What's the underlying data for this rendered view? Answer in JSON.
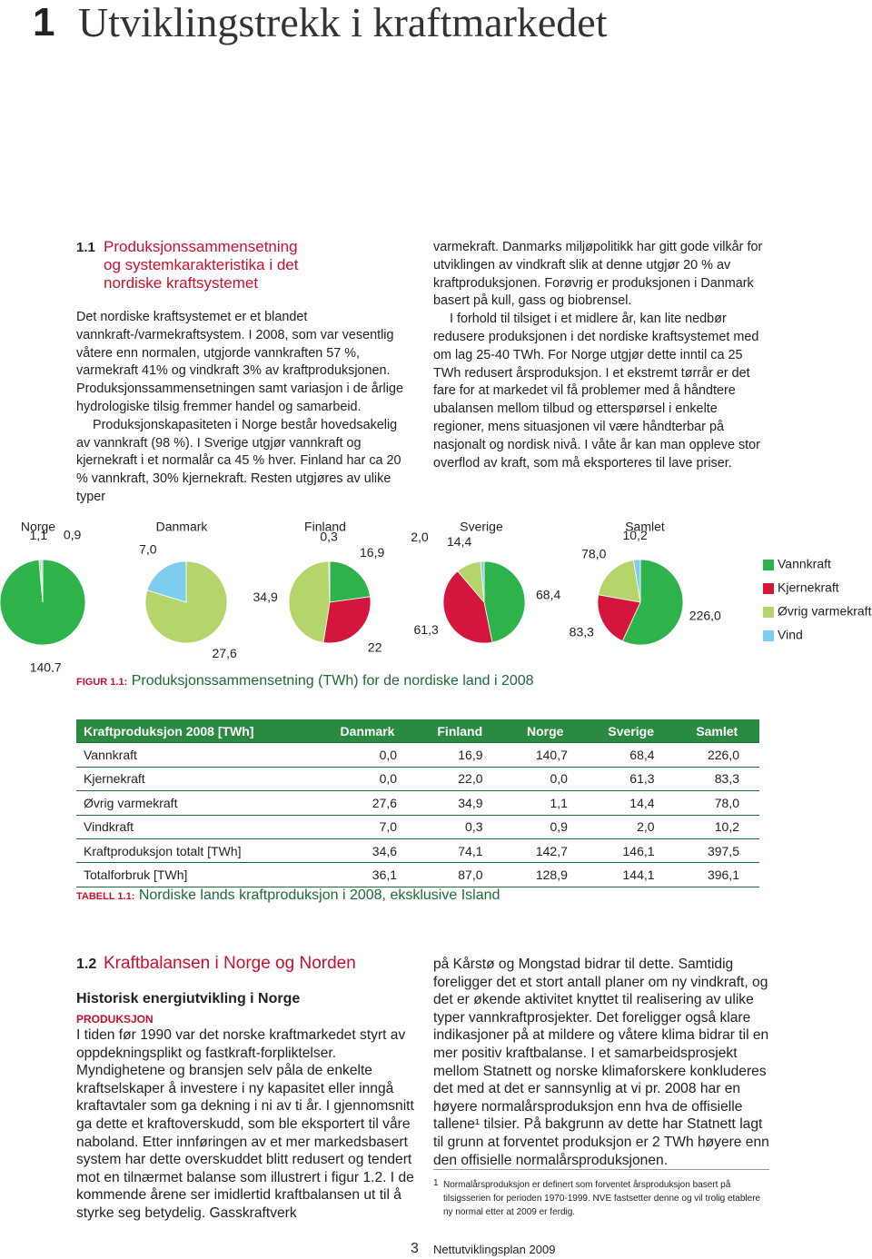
{
  "header": {
    "chapter_number": "1",
    "chapter_title": "Utviklingstrekk i kraftmarkedet"
  },
  "section_1": {
    "number": "1.1",
    "title_lines": [
      "Produksjonssammensetning",
      "og systemkarakteristika i det",
      "nordiske kraftsystemet"
    ],
    "left_paragraphs": [
      "Det nordiske kraftsystemet er et blandet vannkraft-/varmekraftsystem. I 2008, som var vesentlig våtere enn normalen, utgjorde vannkraften 57 %, varmekraft 41% og vindkraft 3% av kraftproduksjonen. Produksjonssammensetningen samt variasjon i de årlige hydrologiske tilsig fremmer handel og samarbeid.",
      "Produksjonskapasiteten i Norge består hovedsakelig av vannkraft (98 %). I Sverige utgjør vannkraft og kjernekraft i et normalår ca 45 % hver. Finland har ca 20 % vannkraft, 30% kjernekraft. Resten utgjøres av ulike typer"
    ],
    "right_paragraphs": [
      "varmekraft. Danmarks miljøpolitikk har gitt gode vilkår for utviklingen av vindkraft slik at denne utgjør 20 % av kraftproduksjonen. Forøvrig er produksjonen i Danmark basert på kull, gass og biobrensel.",
      "I forhold til tilsiget i et midlere år, kan lite nedbør redusere produksjonen i det nordiske kraftsystemet med om lag 25-40 TWh. For Norge utgjør dette inntil ca 25 TWh redusert årsproduksjon. I et ekstremt tørrår er det fare for at markedet vil få problemer med å håndtere ubalansen mellom tilbud og etterspørsel i enkelte regioner, mens situasjonen vil være håndterbar på nasjonalt og nordisk nivå. I våte år kan man oppleve stor overflod av kraft, som må eksporteres til lave priser."
    ]
  },
  "chart_data": [
    {
      "type": "pie",
      "title": "Norge",
      "values": [
        140.7,
        1.1,
        0.9
      ],
      "value_labels": [
        "140,7",
        "1,1",
        "0,9"
      ],
      "colors": [
        "#2db34a",
        "#b5d56a",
        "#7fcdee"
      ]
    },
    {
      "type": "pie",
      "title": "Danmark",
      "values": [
        27.6,
        7.0
      ],
      "value_labels": [
        "27,6",
        "7,0"
      ],
      "colors": [
        "#b5d56a",
        "#7fcdee"
      ]
    },
    {
      "type": "pie",
      "title": "Finland",
      "values": [
        16.9,
        22,
        34.9,
        0.3
      ],
      "value_labels": [
        "16,9",
        "22",
        "34,9",
        "0,3"
      ],
      "colors": [
        "#2db34a",
        "#d4163c",
        "#b5d56a",
        "#7fcdee"
      ]
    },
    {
      "type": "pie",
      "title": "Sverige",
      "values": [
        68.4,
        61.3,
        14.4,
        2.0
      ],
      "value_labels": [
        "68,4",
        "61,3",
        "14,4",
        "2,0"
      ],
      "colors": [
        "#2db34a",
        "#d4163c",
        "#b5d56a",
        "#7fcdee"
      ]
    },
    {
      "type": "pie",
      "title": "Samlet",
      "values": [
        226.0,
        83.3,
        78.0,
        10.2
      ],
      "value_labels": [
        "226,0",
        "83,3",
        "78,0",
        "10,2"
      ],
      "colors": [
        "#2db34a",
        "#d4163c",
        "#b5d56a",
        "#7fcdee"
      ]
    }
  ],
  "figure": {
    "legend": [
      {
        "name": "Vannkraft",
        "color": "#2db34a"
      },
      {
        "name": "Kjernekraft",
        "color": "#d4163c"
      },
      {
        "name": "Øvrig varmekraft",
        "color": "#b5d56a"
      },
      {
        "name": "Vind",
        "color": "#7fcdee"
      }
    ],
    "caption_label": "FIGUR 1.1:",
    "caption": "Produksjonssammensetning (TWh) for de nordiske land i 2008"
  },
  "table": {
    "header": [
      "Kraftproduksjon 2008 [TWh]",
      "Danmark",
      "Finland",
      "Norge",
      "Sverige",
      "Samlet"
    ],
    "rows": [
      [
        "Vannkraft",
        "0,0",
        "16,9",
        "140,7",
        "68,4",
        "226,0"
      ],
      [
        "Kjernekraft",
        "0,0",
        "22,0",
        "0,0",
        "61,3",
        "83,3"
      ],
      [
        "Øvrig varmekraft",
        "27,6",
        "34,9",
        "1,1",
        "14,4",
        "78,0"
      ],
      [
        "Vindkraft",
        "7,0",
        "0,3",
        "0,9",
        "2,0",
        "10,2"
      ],
      [
        "Kraftproduksjon totalt [TWh]",
        "34,6",
        "74,1",
        "142,7",
        "146,1",
        "397,5"
      ],
      [
        "Totalforbruk [TWh]",
        "36,1",
        "87,0",
        "128,9",
        "144,1",
        "396,1"
      ]
    ],
    "caption_label": "TABELL 1.1:",
    "caption": "Nordiske lands kraftproduksjon i 2008, eksklusive Island"
  },
  "section_2": {
    "number": "1.2",
    "title": "Kraftbalansen i Norge og Norden",
    "subheading": "Historisk energiutvikling i Norge",
    "kicker": "PRODUKSJON",
    "left_text": "I tiden før 1990 var det norske kraftmarkedet styrt av oppdekningsplikt og fastkraft-forpliktelser. Myndighetene og bransjen selv påla de enkelte kraftselskaper å investere i ny kapasitet eller inngå kraftavtaler som ga dekning i ni av ti år. I gjennomsnitt ga dette et kraftoverskudd, som ble eksportert til våre naboland. Etter innføringen av et mer markedsbasert system har dette overskuddet blitt redusert og tendert mot en tilnærmet balanse som illustrert i figur 1.2. I de kommende årene ser imidlertid kraftbalansen ut til å styrke seg betydelig. Gasskraftverk",
    "right_text": "på Kårstø og Mongstad bidrar til dette. Samtidig foreligger det et stort antall planer om ny vindkraft, og det er økende aktivitet knyttet til realisering av ulike typer vannkraftprosjekter. Det foreligger også klare indikasjoner på at mildere og våtere klima bidrar til en mer positiv kraftbalanse. I et samarbeidsprosjekt mellom Statnett og norske klimaforskere konkluderes det med at det er sannsynlig at vi pr. 2008 har en høyere normalårsproduksjon enn hva de offisielle tallene¹ tilsier. På bakgrunn av dette har Statnett lagt til grunn at forventet produksjon er 2 TWh høyere enn den offisielle normalårsproduksjonen."
  },
  "footnote": {
    "number": "1",
    "text": "Normalårsproduksjon er definert som forventet årsproduksjon basert på tilsigsserien for perioden 1970-1999. NVE fastsetter denne og vil trolig etablere ny normal etter at 2009 er ferdig."
  },
  "footer": {
    "page_number": "3",
    "publication": "Nettutviklingsplan 2009"
  }
}
